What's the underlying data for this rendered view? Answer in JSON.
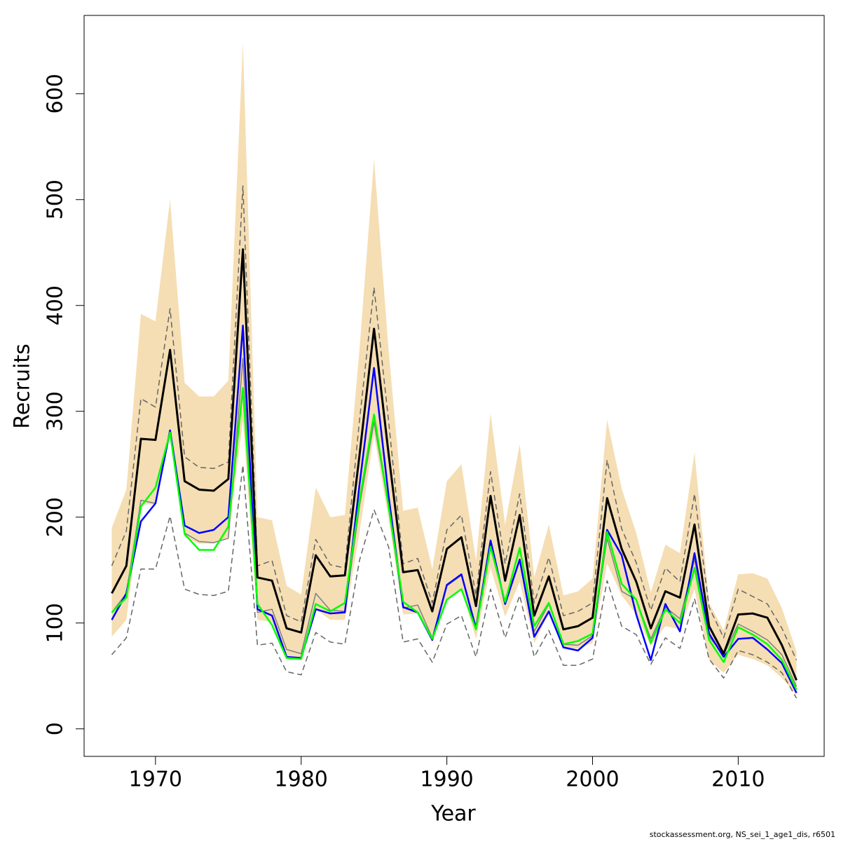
{
  "chart_data": {
    "type": "line",
    "xlabel": "Year",
    "ylabel": "Recruits",
    "footnote": "stockassessment.org, NS_sei_1_age1_dis, r6501",
    "x": [
      1967,
      1968,
      1969,
      1970,
      1971,
      1972,
      1973,
      1974,
      1975,
      1976,
      1977,
      1978,
      1979,
      1980,
      1981,
      1982,
      1983,
      1984,
      1985,
      1986,
      1987,
      1988,
      1989,
      1990,
      1991,
      1992,
      1993,
      1994,
      1995,
      1996,
      1997,
      1998,
      1999,
      2000,
      2001,
      2002,
      2003,
      2004,
      2005,
      2006,
      2007,
      2008,
      2009,
      2010,
      2011,
      2012,
      2013,
      2014
    ],
    "xlim": [
      1965.1,
      2015.9
    ],
    "xticks": [
      1970,
      1980,
      1990,
      2000,
      2010
    ],
    "ylim": [
      -26,
      674
    ],
    "yticks": [
      0,
      100,
      200,
      300,
      400,
      500,
      600
    ],
    "band": {
      "color": "#f5deb3",
      "upper": [
        190,
        226,
        392,
        385,
        500,
        327,
        314,
        314,
        329,
        648,
        200,
        197,
        135,
        127,
        228,
        200,
        202,
        358,
        538,
        358,
        206,
        209,
        151,
        234,
        250,
        159,
        298,
        193,
        269,
        143,
        193,
        126,
        130,
        142,
        292,
        227,
        185,
        129,
        174,
        166,
        261,
        119,
        93,
        146,
        147,
        142,
        114,
        73
      ],
      "lower": [
        87,
        103,
        212,
        212,
        278,
        181,
        175,
        175,
        181,
        291,
        103,
        101,
        66,
        65,
        113,
        103,
        103,
        185,
        278,
        199,
        108,
        109,
        82,
        123,
        132,
        85,
        152,
        106,
        139,
        81,
        109,
        76,
        76,
        81,
        156,
        126,
        108,
        78,
        97,
        94,
        132,
        65,
        53,
        70,
        66,
        60,
        48,
        32
      ]
    },
    "series": [
      {
        "color": "#666666",
        "dashed": true,
        "width": 1.5,
        "values": [
          154,
          187,
          312,
          304,
          397,
          257,
          247,
          246,
          252,
          513,
          154,
          159,
          107,
          101,
          179,
          155,
          152,
          291,
          417,
          291,
          156,
          161,
          119,
          188,
          202,
          126,
          243,
          156,
          222,
          119,
          162,
          107,
          111,
          119,
          254,
          189,
          157,
          112,
          152,
          139,
          222,
          115,
          86,
          132,
          125,
          118,
          95,
          65
        ]
      },
      {
        "color": "#666666",
        "dashed": true,
        "width": 1.5,
        "values": [
          70,
          86,
          151,
          151,
          201,
          132,
          127,
          126,
          130,
          249,
          79,
          81,
          54,
          51,
          91,
          82,
          80,
          159,
          207,
          172,
          82,
          85,
          63,
          99,
          107,
          68,
          132,
          86,
          126,
          68,
          93,
          60,
          60,
          66,
          140,
          97,
          89,
          61,
          86,
          76,
          123,
          66,
          48,
          74,
          70,
          63,
          53,
          29
        ]
      },
      {
        "color": "#808080",
        "dashed": false,
        "width": 1.5,
        "values": [
          110,
          128,
          216,
          213,
          280,
          185,
          177,
          176,
          180,
          350,
          110,
          113,
          75,
          71,
          128,
          112,
          111,
          210,
          290,
          210,
          114,
          117,
          86,
          135,
          145,
          95,
          175,
          118,
          160,
          92,
          118,
          80,
          79,
          88,
          180,
          130,
          122,
          85,
          115,
          104,
          160,
          87,
          70,
          99,
          92,
          84,
          70,
          40
        ]
      },
      {
        "color": "#0000ff",
        "dashed": false,
        "width": 2.5,
        "values": [
          103,
          128,
          196,
          213,
          282,
          192,
          185,
          188,
          200,
          381,
          113,
          107,
          68,
          67,
          113,
          109,
          110,
          230,
          341,
          220,
          115,
          110,
          84,
          136,
          146,
          95,
          178,
          118,
          160,
          87,
          111,
          77,
          74,
          86,
          188,
          164,
          108,
          65,
          118,
          92,
          166,
          90,
          68,
          85,
          86,
          75,
          62,
          34
        ]
      },
      {
        "color": "#00ff00",
        "dashed": false,
        "width": 2.5,
        "values": [
          110,
          124,
          210,
          228,
          280,
          184,
          169,
          169,
          191,
          322,
          118,
          98,
          67,
          66,
          118,
          111,
          119,
          215,
          297,
          210,
          120,
          110,
          85,
          122,
          132,
          94,
          172,
          120,
          171,
          97,
          119,
          80,
          83,
          90,
          186,
          137,
          122,
          81,
          113,
          100,
          152,
          84,
          63,
          96,
          89,
          80,
          65,
          37
        ]
      },
      {
        "color": "#000000",
        "dashed": false,
        "width": 3,
        "values": [
          128,
          154,
          274,
          273,
          358,
          234,
          226,
          225,
          236,
          453,
          143,
          140,
          95,
          91,
          164,
          144,
          145,
          258,
          378,
          260,
          148,
          150,
          111,
          170,
          181,
          116,
          220,
          140,
          202,
          107,
          144,
          94,
          97,
          105,
          218,
          170,
          139,
          95,
          130,
          124,
          193,
          97,
          71,
          108,
          109,
          105,
          79,
          46
        ]
      }
    ]
  }
}
